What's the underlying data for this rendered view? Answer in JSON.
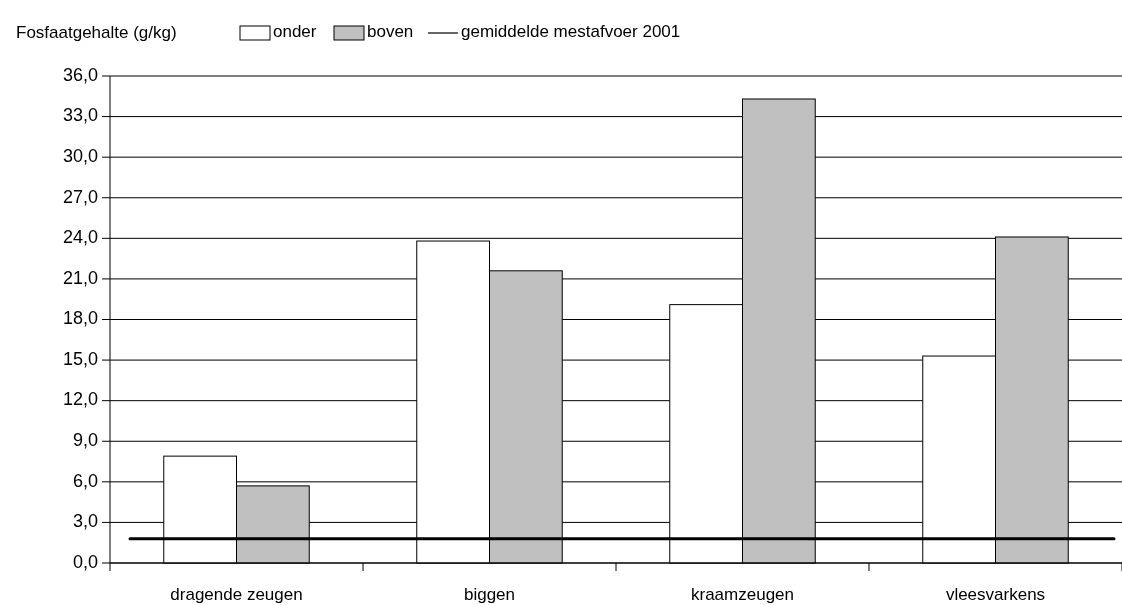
{
  "chart_data": {
    "type": "bar",
    "ylabel": "Fosfaatgehalte (g/kg)",
    "categories": [
      "dragende zeugen",
      "biggen",
      "kraamzeugen",
      "vleesvarkens"
    ],
    "series": [
      {
        "name": "onder",
        "color": "#ffffff",
        "values": [
          7.9,
          23.8,
          19.1,
          15.3
        ]
      },
      {
        "name": "boven",
        "color": "#c0c0c0",
        "values": [
          5.7,
          21.6,
          34.3,
          24.1
        ]
      }
    ],
    "ylim": [
      0,
      36
    ],
    "yticks": [
      {
        "value": 0,
        "label": "0,0"
      },
      {
        "value": 3,
        "label": "3,0"
      },
      {
        "value": 6,
        "label": "6,0"
      },
      {
        "value": 9,
        "label": "9,0"
      },
      {
        "value": 12,
        "label": "12,0"
      },
      {
        "value": 15,
        "label": "15,0"
      },
      {
        "value": 18,
        "label": "18,0"
      },
      {
        "value": 21,
        "label": "21,0"
      },
      {
        "value": 24,
        "label": "24,0"
      },
      {
        "value": 27,
        "label": "27,0"
      },
      {
        "value": 30,
        "label": "30,0"
      },
      {
        "value": 33,
        "label": "33,0"
      },
      {
        "value": 36,
        "label": "36,0"
      }
    ],
    "grid": "y",
    "legend": "top",
    "ref_lines": [
      {
        "axis": "y",
        "value": 1.8,
        "label": "gemiddelde mestafvoer 2001",
        "color": "#000000"
      }
    ]
  }
}
